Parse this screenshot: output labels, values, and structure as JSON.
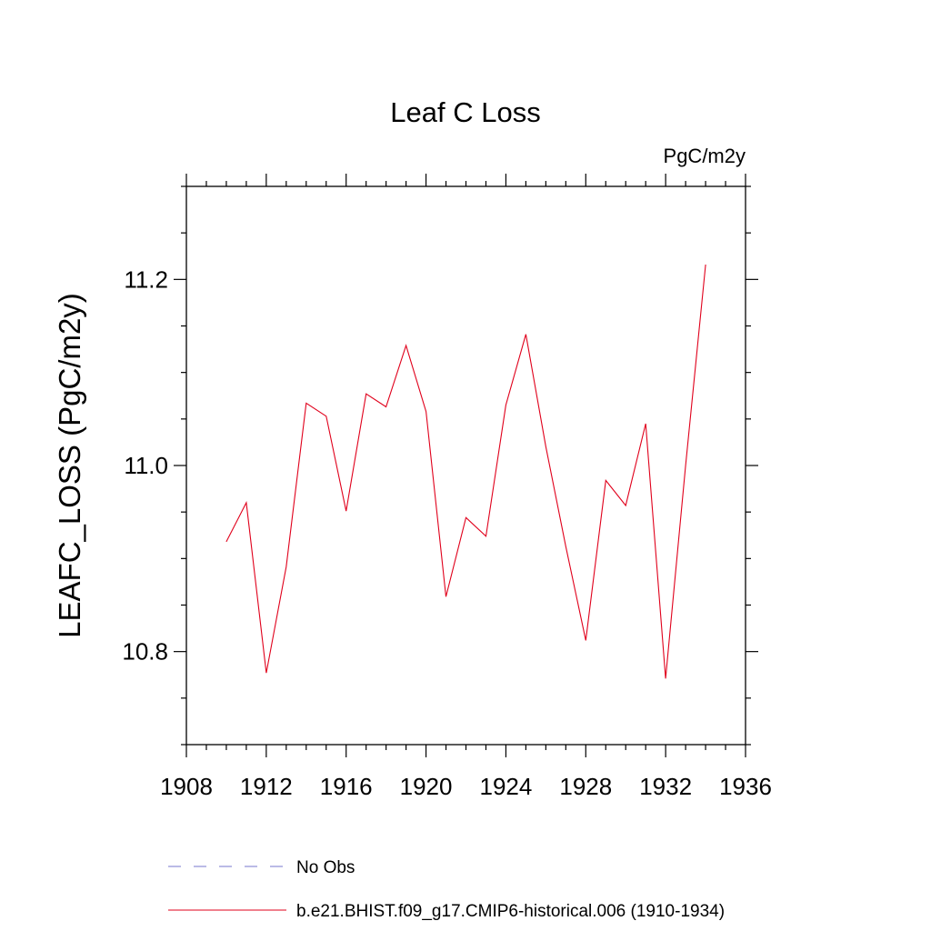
{
  "chart_data": {
    "type": "line",
    "title": "Leaf C Loss",
    "units": "PgC/m2y",
    "ylabel": "LEAFC_LOSS  (PgC/m2y)",
    "xlabel": "",
    "xlim": [
      1908,
      1936
    ],
    "ylim": [
      10.7,
      11.3
    ],
    "x_ticks": [
      "1908",
      "1912",
      "1916",
      "1920",
      "1924",
      "1928",
      "1932",
      "1936"
    ],
    "y_ticks": [
      "10.8",
      "11.0",
      "11.2"
    ],
    "series": [
      {
        "name": "b.e21.BHIST.f09_g17.CMIP6-historical.006 (1910-1934)",
        "color": "#e0001b",
        "style": "solid",
        "x": [
          1910,
          1911,
          1912,
          1913,
          1914,
          1915,
          1916,
          1917,
          1918,
          1919,
          1920,
          1921,
          1922,
          1923,
          1924,
          1925,
          1926,
          1927,
          1928,
          1929,
          1930,
          1931,
          1932,
          1933,
          1934
        ],
        "values": [
          10.918,
          10.96,
          10.777,
          10.891,
          11.067,
          11.053,
          10.951,
          11.077,
          11.063,
          11.129,
          11.058,
          10.859,
          10.944,
          10.924,
          11.065,
          11.141,
          11.02,
          10.913,
          10.812,
          10.984,
          10.957,
          11.045,
          10.771,
          11.0,
          11.216
        ]
      }
    ],
    "legend": [
      {
        "label": "No Obs",
        "color": "#7777cc",
        "style": "dashed"
      },
      {
        "label": "b.e21.BHIST.f09_g17.CMIP6-historical.006 (1910-1934)",
        "color": "#e0001b",
        "style": "solid"
      }
    ]
  }
}
